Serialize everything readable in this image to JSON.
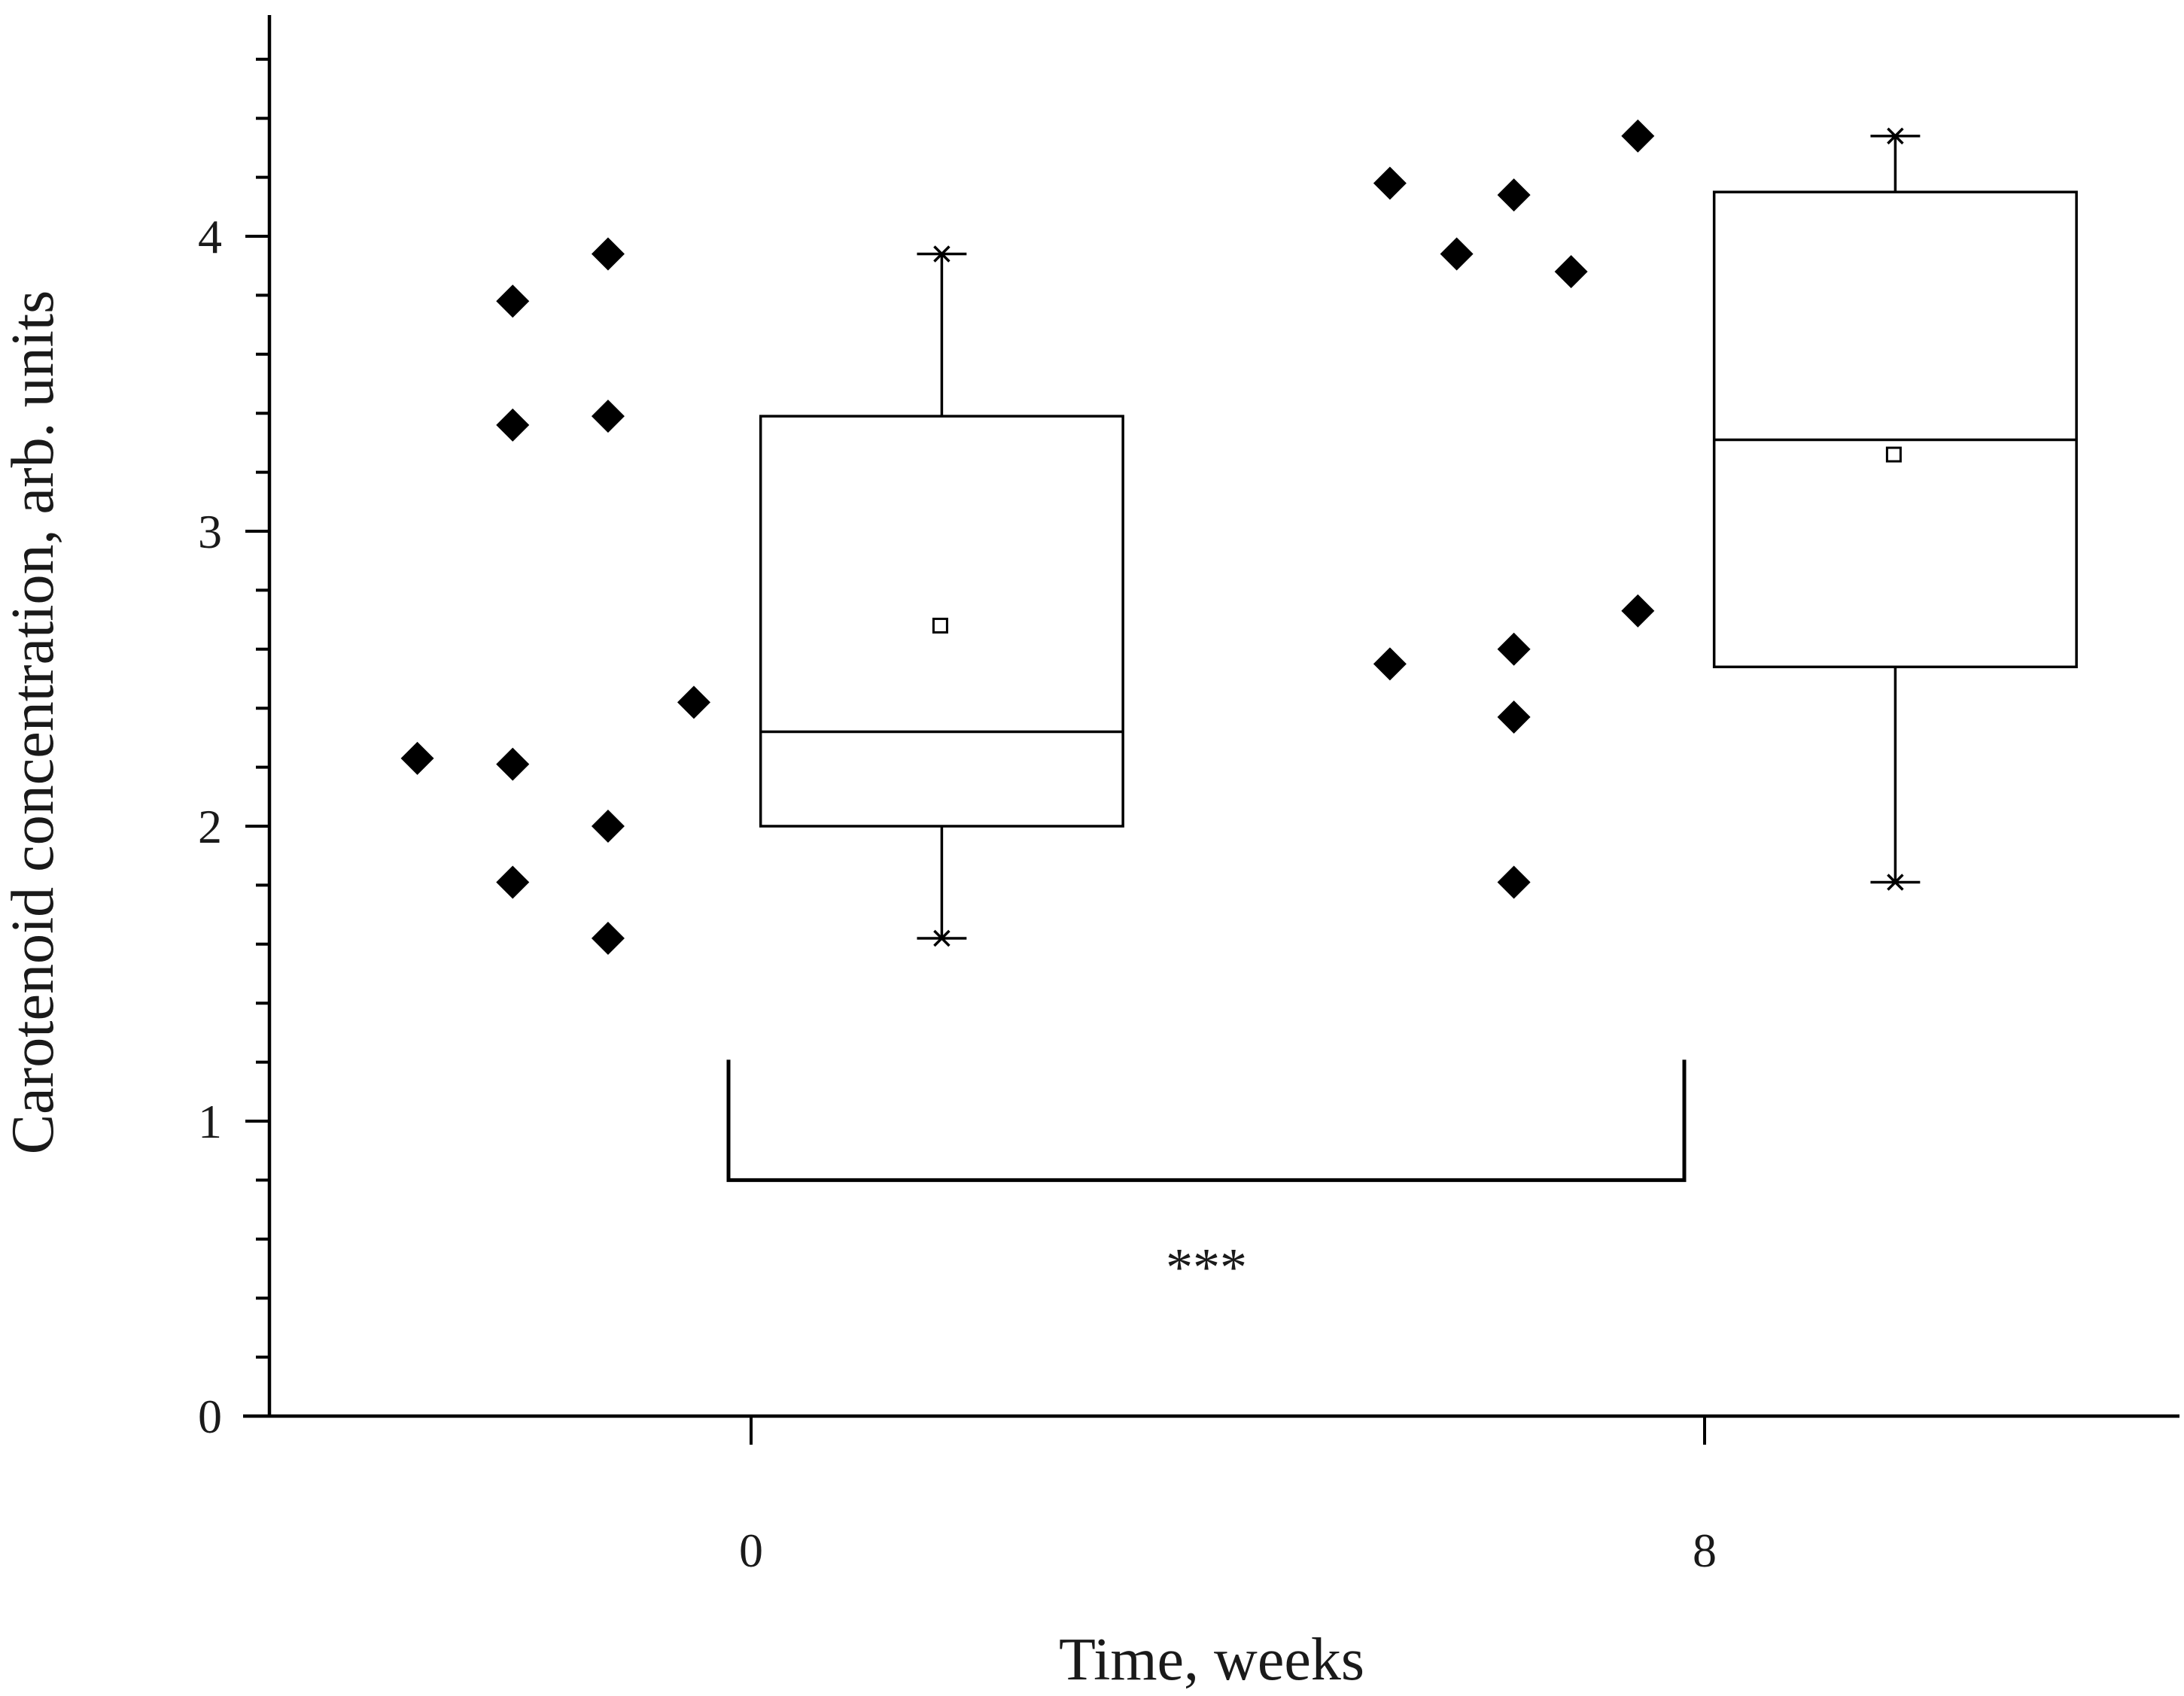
{
  "chart_data": {
    "type": "box",
    "title": "",
    "xlabel": "Time, weeks",
    "ylabel": "Carotenoid concentration, arb. units",
    "ylim": [
      0,
      4.6
    ],
    "yticks": [
      "0",
      "1",
      "2",
      "3",
      "4"
    ],
    "ytick_values": [
      0,
      1,
      2,
      3,
      4
    ],
    "minor_tick_step": 0.2,
    "categories": [
      "0",
      "8"
    ],
    "groups": [
      {
        "name": "0",
        "points": [
          {
            "x": -0.35,
            "y": 2.23
          },
          {
            "x": -0.25,
            "y": 3.78
          },
          {
            "x": -0.25,
            "y": 3.36
          },
          {
            "x": -0.25,
            "y": 2.21
          },
          {
            "x": -0.25,
            "y": 1.81
          },
          {
            "x": -0.15,
            "y": 3.94
          },
          {
            "x": -0.15,
            "y": 3.39
          },
          {
            "x": -0.15,
            "y": 2.0
          },
          {
            "x": -0.15,
            "y": 1.62
          },
          {
            "x": -0.06,
            "y": 2.42
          }
        ],
        "box": {
          "min": 1.62,
          "q1": 2.0,
          "median": 2.32,
          "q3": 3.39,
          "max": 3.94,
          "mean": 2.68
        }
      },
      {
        "name": "8",
        "points": [
          {
            "x": -0.33,
            "y": 4.18
          },
          {
            "x": -0.33,
            "y": 2.55
          },
          {
            "x": -0.26,
            "y": 3.94
          },
          {
            "x": -0.2,
            "y": 4.14
          },
          {
            "x": -0.2,
            "y": 2.6
          },
          {
            "x": -0.2,
            "y": 2.37
          },
          {
            "x": -0.2,
            "y": 1.81
          },
          {
            "x": -0.14,
            "y": 3.88
          },
          {
            "x": -0.07,
            "y": 4.34
          },
          {
            "x": -0.07,
            "y": 2.73
          }
        ],
        "box": {
          "min": 1.81,
          "q1": 2.54,
          "median": 3.31,
          "q3": 4.15,
          "max": 4.34,
          "mean": 3.26
        }
      }
    ],
    "annotation": {
      "text": "***",
      "type": "significance-bracket",
      "between": [
        "0",
        "8"
      ],
      "y": 0.8
    }
  }
}
